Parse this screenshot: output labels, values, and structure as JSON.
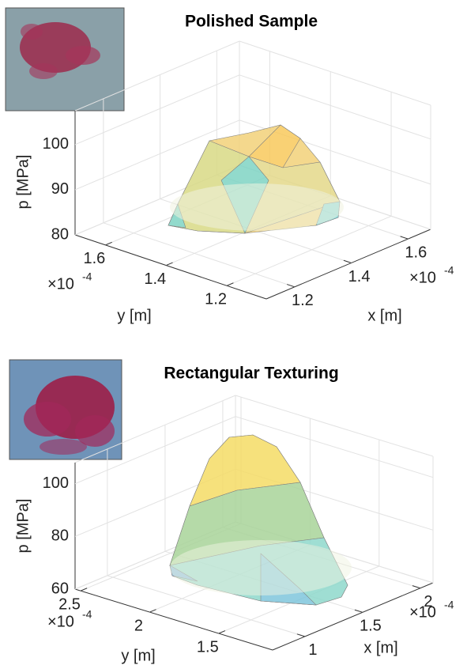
{
  "chart_data": [
    {
      "type": "surface3d",
      "title": "Polished Sample",
      "xlabel": "x [m]",
      "ylabel": "y [m]",
      "zlabel": "p [MPa]",
      "x_multiplier": {
        "base": "×10",
        "exponent": "-4"
      },
      "y_multiplier": {
        "base": "×10",
        "exponent": "-4"
      },
      "xlim": [
        0.00011,
        0.000168
      ],
      "ylim": [
        0.000107,
        0.00017
      ],
      "zlim": [
        80,
        107.5
      ],
      "xticks": [
        {
          "value": 0.00012,
          "label": "1.2"
        },
        {
          "value": 0.00014,
          "label": "1.4"
        },
        {
          "value": 0.00016,
          "label": "1.6"
        }
      ],
      "yticks": [
        {
          "value": 0.00012,
          "label": "1.2"
        },
        {
          "value": 0.00014,
          "label": "1.4"
        },
        {
          "value": 0.00016,
          "label": "1.6"
        }
      ],
      "zticks": [
        80,
        90,
        100
      ],
      "grid": true
    },
    {
      "type": "surface3d",
      "title": "Rectangular Texturing",
      "xlabel": "x [m]",
      "ylabel": "y [m]",
      "zlabel": "p [MPa]",
      "x_multiplier": {
        "base": "×10",
        "exponent": "-4"
      },
      "y_multiplier": {
        "base": "×10",
        "exponent": "-4"
      },
      "xlim": [
        7.2e-05,
        0.000211
      ],
      "ylim": [
        0.000111,
        0.000254
      ],
      "zlim": [
        60,
        108
      ],
      "xticks": [
        {
          "value": 0.0001,
          "label": "1"
        },
        {
          "value": 0.00015,
          "label": "1.5"
        },
        {
          "value": 0.0002,
          "label": "2"
        }
      ],
      "yticks": [
        {
          "value": 0.00015,
          "label": "1.5"
        },
        {
          "value": 0.0002,
          "label": "2"
        },
        {
          "value": 0.00025,
          "label": "2.5"
        }
      ],
      "zticks": [
        60,
        80,
        100
      ],
      "grid": true
    }
  ]
}
